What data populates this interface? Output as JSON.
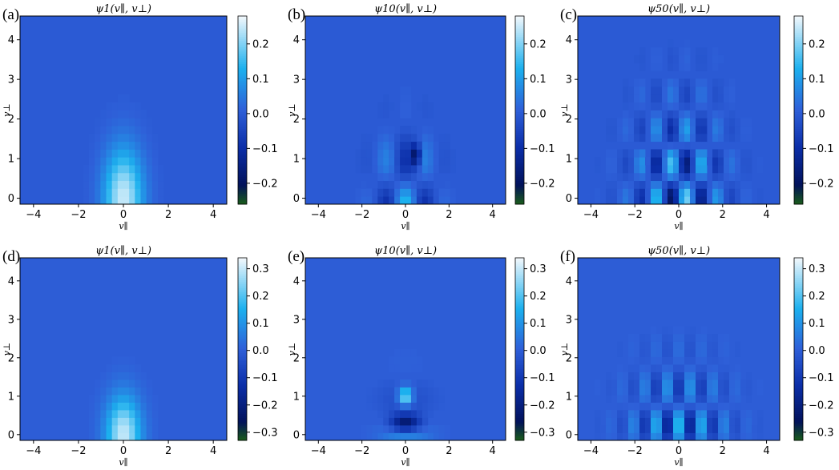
{
  "chart_data": [
    {
      "type": "heatmap",
      "panel": "(a)",
      "title": "ψ1(v∥, v⊥)",
      "xlabel": "v∥",
      "ylabel": "v⊥",
      "xlim": [
        -4.6,
        4.6
      ],
      "ylim": [
        -0.15,
        4.6
      ],
      "x_ticks": [
        "−4",
        "−2",
        "0",
        "2",
        "4"
      ],
      "y_ticks": [
        "0",
        "1",
        "2",
        "3",
        "4"
      ],
      "colorbar_range": [
        -0.26,
        0.28
      ],
      "colorbar_ticks": [
        "0.2",
        "0.1",
        "0.0",
        "−0.1",
        "−0.2"
      ],
      "pattern": "single lobe centered at v∥=0, max ≈0.25 near v⊥=0.3, extends to v⊥≈2.5"
    },
    {
      "type": "heatmap",
      "panel": "(b)",
      "title": "ψ10(v∥, v⊥)",
      "xlabel": "v∥",
      "ylabel": "v⊥",
      "xlim": [
        -4.6,
        4.6
      ],
      "ylim": [
        -0.15,
        4.6
      ],
      "x_ticks": [
        "−4",
        "−2",
        "0",
        "2",
        "4"
      ],
      "y_ticks": [
        "0",
        "1",
        "2",
        "3",
        "4"
      ],
      "colorbar_range": [
        -0.26,
        0.28
      ],
      "colorbar_ticks": [
        "0.2",
        "0.1",
        "0.0",
        "−0.1",
        "−0.2"
      ],
      "pattern": "mixed positive/negative cells in v∥∈[−2,2], min ≈ −0.25 near (0.5,1.1)"
    },
    {
      "type": "heatmap",
      "panel": "(c)",
      "title": "ψ50(v∥, v⊥)",
      "xlabel": "v∥",
      "ylabel": "v⊥",
      "xlim": [
        -4.6,
        4.6
      ],
      "ylim": [
        -0.15,
        4.6
      ],
      "x_ticks": [
        "−4",
        "−2",
        "0",
        "2",
        "4"
      ],
      "y_ticks": [
        "0",
        "1",
        "2",
        "3",
        "4"
      ],
      "colorbar_range": [
        -0.26,
        0.28
      ],
      "colorbar_ticks": [
        "0.2",
        "0.1",
        "0.0",
        "−0.1",
        "−0.2"
      ],
      "pattern": "oscillatory checkerboard in v∥∈[−2.5,2.5], v⊥∈[0,3.5]"
    },
    {
      "type": "heatmap",
      "panel": "(d)",
      "title": "ψ1(v∥, v⊥)",
      "xlabel": "v∥",
      "ylabel": "v⊥",
      "xlim": [
        -4.6,
        4.6
      ],
      "ylim": [
        -0.15,
        4.6
      ],
      "x_ticks": [
        "−4",
        "−2",
        "0",
        "2",
        "4"
      ],
      "y_ticks": [
        "0",
        "1",
        "2",
        "3",
        "4"
      ],
      "colorbar_range": [
        -0.33,
        0.34
      ],
      "colorbar_ticks": [
        "0.3",
        "0.2",
        "0.1",
        "0.0",
        "−0.1",
        "−0.2",
        "−0.3"
      ],
      "pattern": "single lobe centered at v∥=0, max ≈0.3 near v⊥=0.2, extends to v⊥≈2"
    },
    {
      "type": "heatmap",
      "panel": "(e)",
      "title": "ψ10(v∥, v⊥)",
      "xlabel": "v∥",
      "ylabel": "v⊥",
      "xlim": [
        -4.6,
        4.6
      ],
      "ylim": [
        -0.15,
        4.6
      ],
      "x_ticks": [
        "−4",
        "−2",
        "0",
        "2",
        "4"
      ],
      "y_ticks": [
        "0",
        "1",
        "2",
        "3",
        "4"
      ],
      "colorbar_range": [
        -0.33,
        0.34
      ],
      "colorbar_ticks": [
        "0.3",
        "0.2",
        "0.1",
        "0.0",
        "−0.1",
        "−0.2",
        "−0.3"
      ],
      "pattern": "positive peak ≈0.3 near (0,1), negative band near v⊥≈0.3"
    },
    {
      "type": "heatmap",
      "panel": "(f)",
      "title": "ψ50(v∥, v⊥)",
      "xlabel": "v∥",
      "ylabel": "v⊥",
      "xlim": [
        -4.6,
        4.6
      ],
      "ylim": [
        -0.15,
        4.6
      ],
      "x_ticks": [
        "−4",
        "−2",
        "0",
        "2",
        "4"
      ],
      "y_ticks": [
        "0",
        "1",
        "2",
        "3",
        "4"
      ],
      "colorbar_range": [
        -0.33,
        0.34
      ],
      "colorbar_ticks": [
        "0.3",
        "0.2",
        "0.1",
        "0.0",
        "−0.1",
        "−0.2",
        "−0.3"
      ],
      "pattern": "oscillatory stripes in v∥∈[−2.5,2.5], v⊥∈[0,2.8]"
    }
  ],
  "colormap": {
    "stops": [
      "#1a5c1a",
      "#02125a",
      "#0b2ea8",
      "#2e5fd8",
      "#1cb0ee",
      "#f4f8fc"
    ],
    "background": "#3562db"
  }
}
